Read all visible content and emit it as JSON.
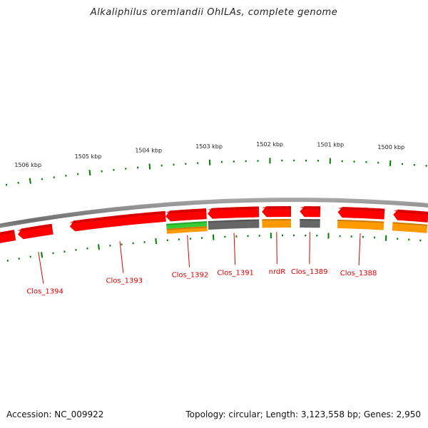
{
  "title": "Alkaliphilus oremlandii OhILAs, complete genome",
  "footer": {
    "accession": "Accession: NC_009922",
    "topology": "Topology: circular; Length: 3,123,558 bp; Genes: 2,950"
  },
  "colors": {
    "backbone": "#808080",
    "cds": "#ff0000",
    "tick": "#008000",
    "label": "#e00000",
    "track_green": "#33cc33",
    "track_orange": "#ff9900",
    "track_gray": "#666666"
  },
  "scale": {
    "unit": "kbp",
    "major_ticks": [
      {
        "kbp": 1506,
        "label": "1506 kbp"
      },
      {
        "kbp": 1505,
        "label": "1505 kbp"
      },
      {
        "kbp": 1504,
        "label": "1504 kbp"
      },
      {
        "kbp": 1503,
        "label": "1503 kbp"
      },
      {
        "kbp": 1502,
        "label": "1502 kbp"
      },
      {
        "kbp": 1501,
        "label": "1501 kbp"
      },
      {
        "kbp": 1500,
        "label": "1500 kbp"
      }
    ]
  },
  "genes": [
    {
      "name": "Clos_1394",
      "start_kbp": 1506.35,
      "end_kbp": 1505.75,
      "strand": "-",
      "tracks": []
    },
    {
      "name": "Clos_1393",
      "start_kbp": 1505.45,
      "end_kbp": 1503.8,
      "strand": "-",
      "tracks": []
    },
    {
      "name": "Clos_1392",
      "start_kbp": 1503.8,
      "end_kbp": 1503.1,
      "strand": "-",
      "tracks": [
        "green",
        "orange"
      ]
    },
    {
      "name": "Clos_1391",
      "start_kbp": 1503.08,
      "end_kbp": 1502.2,
      "strand": "-",
      "tracks": [
        "gray"
      ]
    },
    {
      "name": "nrdR",
      "start_kbp": 1502.15,
      "end_kbp": 1501.65,
      "strand": "-",
      "tracks": [
        "orange"
      ]
    },
    {
      "name": "Clos_1389",
      "start_kbp": 1501.5,
      "end_kbp": 1501.15,
      "strand": "-",
      "tracks": [
        "gray"
      ]
    },
    {
      "name": "Clos_1388",
      "start_kbp": 1500.85,
      "end_kbp": 1500.05,
      "strand": "-",
      "tracks": [
        "orange"
      ]
    },
    {
      "name": "",
      "start_kbp": 1499.9,
      "end_kbp": 1499.3,
      "strand": "-",
      "tracks": [
        "orange"
      ]
    },
    {
      "name": "",
      "start_kbp": 1506.8,
      "end_kbp": 1506.4,
      "strand": "-",
      "tracks": []
    }
  ]
}
